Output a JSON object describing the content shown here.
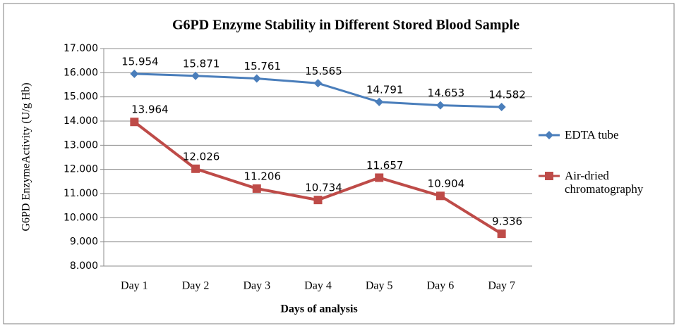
{
  "chart_data": {
    "type": "line",
    "title": "G6PD Enzyme Stability in Different Stored Blood Sample",
    "x_label": "Days of analysis",
    "y_label": "G6PD EnzymeActivity (U/g Hb)",
    "categories": [
      "Day 1",
      "Day 2",
      "Day 3",
      "Day 4",
      "Day 5",
      "Day 6",
      "Day 7"
    ],
    "series": [
      {
        "name": "EDTA tube",
        "color": "#4a7ebb",
        "marker": "diamond",
        "values": [
          15.954,
          15.871,
          15.761,
          15.565,
          14.791,
          14.653,
          14.582
        ]
      },
      {
        "name": "Air-dried chromatography",
        "color": "#be4b48",
        "marker": "square",
        "values": [
          13.964,
          12.026,
          11.206,
          10.734,
          11.657,
          10.904,
          9.336
        ]
      }
    ],
    "ylim": [
      8,
      17
    ],
    "yticks": [
      {
        "value": 8,
        "label": "8.000"
      },
      {
        "value": 9,
        "label": "9.000"
      },
      {
        "value": 10,
        "label": "10.000"
      },
      {
        "value": 11,
        "label": "11.000"
      },
      {
        "value": 12,
        "label": "12.000"
      },
      {
        "value": 13,
        "label": "13.000"
      },
      {
        "value": 14,
        "label": "14.000"
      },
      {
        "value": 15,
        "label": "15.000"
      },
      {
        "value": 16,
        "label": "16.000"
      },
      {
        "value": 17,
        "label": "17.000"
      }
    ],
    "grid": true,
    "legend": "right"
  }
}
